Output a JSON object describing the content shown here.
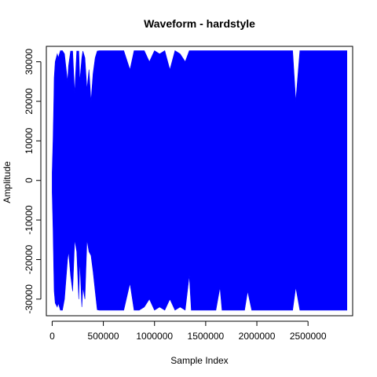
{
  "chart_data": {
    "type": "line",
    "title": "Waveform - hardstyle",
    "xlabel": "Sample Index",
    "ylabel": "Amplitude",
    "xlim": [
      -57000,
      2936000
    ],
    "ylim": [
      -34200,
      33900
    ],
    "x_ticks": [
      0,
      500000,
      1000000,
      1500000,
      2000000,
      2500000
    ],
    "y_ticks": [
      -30000,
      -20000,
      -10000,
      0,
      10000,
      20000,
      30000
    ],
    "grid": false,
    "legend": "none",
    "series": [
      {
        "color": "#0000ff",
        "envelope": {
          "x": [
            0,
            8000,
            15000,
            20000,
            30000,
            50000,
            60000,
            80000,
            100000,
            120000,
            150000,
            160000,
            180000,
            200000,
            220000,
            240000,
            260000,
            270000,
            290000,
            300000,
            320000,
            340000,
            360000,
            380000,
            400000,
            420000,
            440000,
            460000,
            500000,
            600000,
            700000,
            760000,
            800000,
            850000,
            900000,
            950000,
            1000000,
            1050000,
            1100000,
            1150000,
            1200000,
            1250000,
            1300000,
            1340000,
            1360000,
            1400000,
            1500000,
            1600000,
            1640000,
            1660000,
            1700000,
            1800000,
            1880000,
            1910000,
            1950000,
            2000000,
            2100000,
            2200000,
            2300000,
            2350000,
            2380000,
            2420000,
            2460000,
            2500000,
            2600000,
            2700000,
            2800000,
            2880000
          ],
          "upper": [
            2000,
            10000,
            19000,
            26000,
            30000,
            32000,
            31000,
            32800,
            32800,
            32000,
            25000,
            29000,
            32700,
            32700,
            22000,
            32700,
            32700,
            25000,
            31000,
            32700,
            31000,
            23000,
            28000,
            20000,
            27000,
            31000,
            32700,
            32800,
            32800,
            32800,
            32800,
            28000,
            32800,
            32800,
            32800,
            30000,
            32800,
            32000,
            32800,
            28000,
            32800,
            32000,
            30000,
            32800,
            32800,
            32800,
            32800,
            32800,
            32800,
            32800,
            32800,
            32800,
            32800,
            32800,
            32800,
            32800,
            32800,
            32800,
            32800,
            32800,
            20000,
            32800,
            32800,
            32800,
            32800,
            32800,
            32800,
            32800
          ],
          "lower": [
            -3000,
            -12000,
            -22000,
            -28000,
            -31000,
            -32000,
            -31000,
            -32800,
            -32800,
            -30000,
            -20000,
            -18000,
            -24000,
            -28000,
            -15000,
            -18000,
            -30000,
            -20000,
            -32000,
            -27000,
            -30000,
            -15000,
            -18000,
            -19000,
            -23000,
            -28000,
            -32700,
            -32800,
            -32800,
            -32800,
            -32800,
            -26000,
            -32800,
            -32800,
            -32000,
            -30000,
            -32800,
            -32000,
            -32800,
            -30000,
            -32800,
            -32000,
            -32800,
            -24000,
            -32800,
            -32800,
            -32800,
            -32800,
            -27000,
            -32800,
            -32800,
            -32800,
            -32800,
            -28000,
            -32800,
            -32800,
            -32800,
            -32800,
            -32800,
            -32800,
            -27000,
            -32800,
            -32800,
            -32800,
            -32800,
            -32800,
            -32800,
            -32800
          ]
        }
      }
    ]
  }
}
